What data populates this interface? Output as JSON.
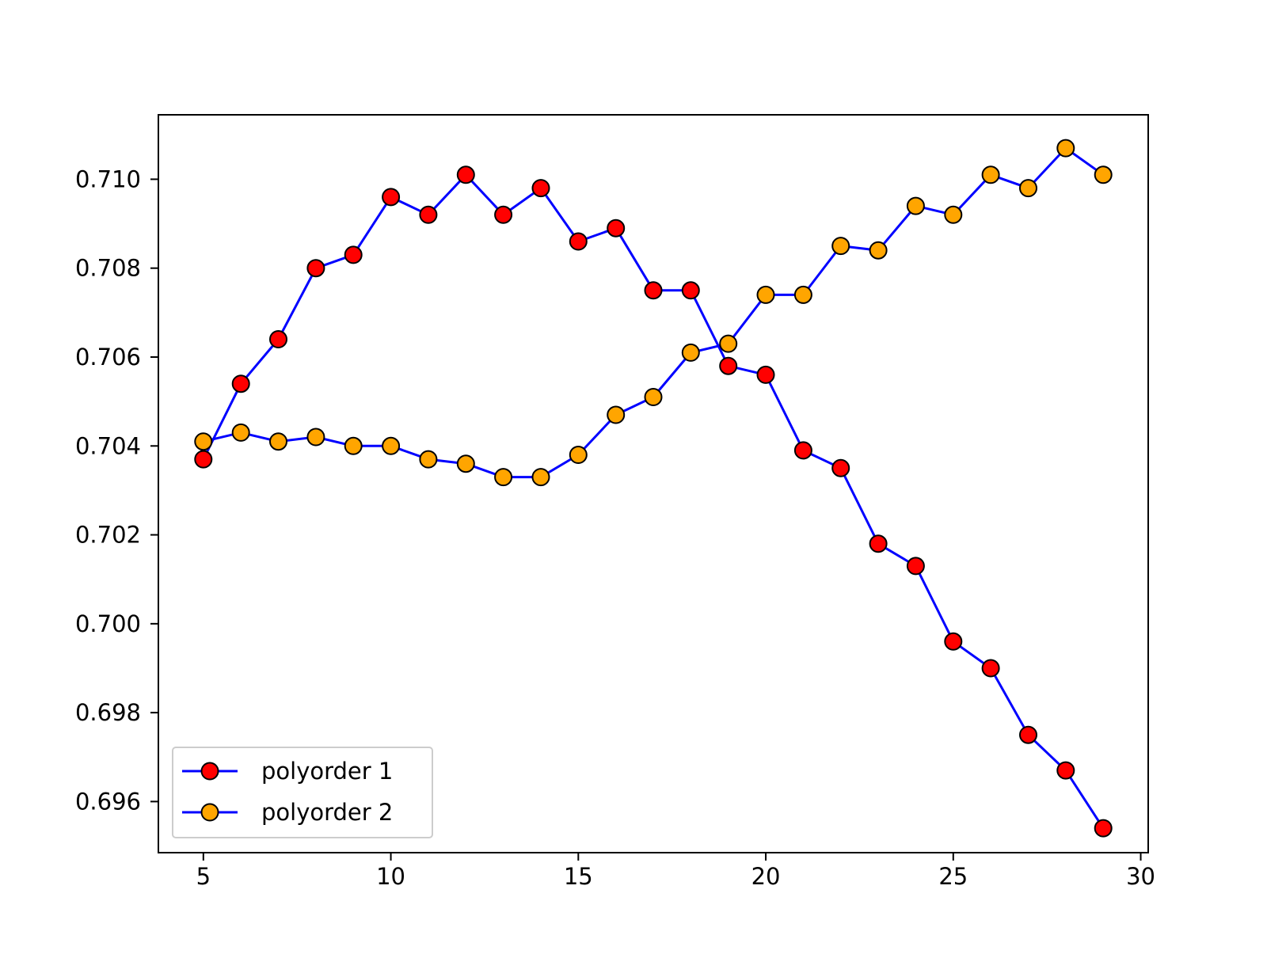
{
  "chart_data": {
    "type": "line",
    "title": "",
    "xlabel": "",
    "ylabel": "",
    "xlim": [
      3.8,
      30.2
    ],
    "ylim": [
      0.69485,
      0.71145
    ],
    "x_ticks": [
      5,
      10,
      15,
      20,
      25,
      30
    ],
    "x_tick_labels": [
      "5",
      "10",
      "15",
      "20",
      "25",
      "30"
    ],
    "y_ticks": [
      0.696,
      0.698,
      0.7,
      0.702,
      0.704,
      0.706,
      0.708,
      0.71
    ],
    "y_tick_labels": [
      "0.696",
      "0.698",
      "0.700",
      "0.702",
      "0.704",
      "0.706",
      "0.708",
      "0.710"
    ],
    "grid": false,
    "legend": {
      "position": "lower-left",
      "entries": [
        "polyorder 1",
        "polyorder 2"
      ]
    },
    "x": [
      5,
      6,
      7,
      8,
      9,
      10,
      11,
      12,
      13,
      14,
      15,
      16,
      17,
      18,
      19,
      20,
      21,
      22,
      23,
      24,
      25,
      26,
      27,
      28,
      29
    ],
    "series": [
      {
        "name": "polyorder 1",
        "line_color": "#0000ff",
        "marker_color": "#ff0000",
        "values": [
          0.7037,
          0.7054,
          0.7064,
          0.708,
          0.7083,
          0.7096,
          0.7092,
          0.7101,
          0.7092,
          0.7098,
          0.7086,
          0.7089,
          0.7075,
          0.7075,
          0.7058,
          0.7056,
          0.7039,
          0.7035,
          0.7018,
          0.7013,
          0.6996,
          0.699,
          0.6975,
          0.6967,
          0.6954
        ]
      },
      {
        "name": "polyorder 2",
        "line_color": "#0000ff",
        "marker_color": "#ffa500",
        "values": [
          0.7041,
          0.7043,
          0.7041,
          0.7042,
          0.704,
          0.704,
          0.7037,
          0.7036,
          0.7033,
          0.7033,
          0.7038,
          0.7047,
          0.7051,
          0.7061,
          0.7063,
          0.7074,
          0.7074,
          0.7085,
          0.7084,
          0.7094,
          0.7092,
          0.7101,
          0.7098,
          0.7107,
          0.7101
        ]
      }
    ]
  }
}
